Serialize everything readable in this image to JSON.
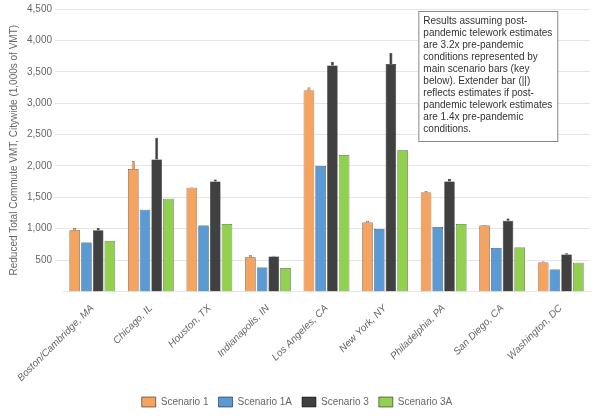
{
  "chart_data": {
    "type": "bar",
    "categories": [
      "Boston/Cambridge, MA",
      "Chicago, IL",
      "Houston, TX",
      "Indianapolis, IN",
      "Los Angeles, CA",
      "New York, NY",
      "Philadelphia, PA",
      "San Diego, CA",
      "Washington, DC"
    ],
    "series": [
      {
        "name": "Scenario 1",
        "color": "#F4A460",
        "values": [
          975,
          1950,
          1650,
          545,
          3200,
          1100,
          1575,
          1050,
          460
        ],
        "extender": [
          1010,
          2075,
          1660,
          575,
          3250,
          1125,
          1600,
          1060,
          475
        ]
      },
      {
        "name": "Scenario 1A",
        "color": "#5B9BD5",
        "values": [
          780,
          1300,
          1050,
          380,
          2000,
          995,
          1025,
          690,
          350
        ]
      },
      {
        "name": "Scenario 3",
        "color": "#404040",
        "values": [
          975,
          2100,
          1750,
          555,
          3600,
          3625,
          1750,
          1125,
          590
        ],
        "extender": [
          1010,
          2450,
          1785,
          570,
          3660,
          3800,
          1790,
          1160,
          610
        ]
      },
      {
        "name": "Scenario 3A",
        "color": "#92D050",
        "values": [
          800,
          1475,
          1075,
          375,
          2175,
          2250,
          1075,
          700,
          455
        ]
      }
    ],
    "ylabel": "Reduced Total Commute VMT, Citywide (1,000s of VMT)",
    "ylim": [
      0,
      4500
    ],
    "yticks": [
      500,
      {
        "value": 1000,
        "label": "1,000"
      },
      {
        "value": 1500,
        "label": "1,500"
      },
      {
        "value": 2000,
        "label": "2,000"
      },
      {
        "value": 2500,
        "label": "2,500"
      },
      {
        "value": 3000,
        "label": "3,000"
      },
      {
        "value": 3500,
        "label": "3,500"
      },
      {
        "value": 4000,
        "label": "4,000"
      },
      {
        "value": 4500,
        "label": "4,500"
      }
    ],
    "grid": true,
    "legend": "bottom",
    "annotation": "Results assuming post-\npandemic telework estimates\nare 3.2x pre-pandemic\nconditions represented by\nmain scenario bars (key\nbelow). Extender bar (||)\nreflects estimates if post-\npandemic telework estimates\nare 1.4x pre-pandemic\nconditions."
  }
}
